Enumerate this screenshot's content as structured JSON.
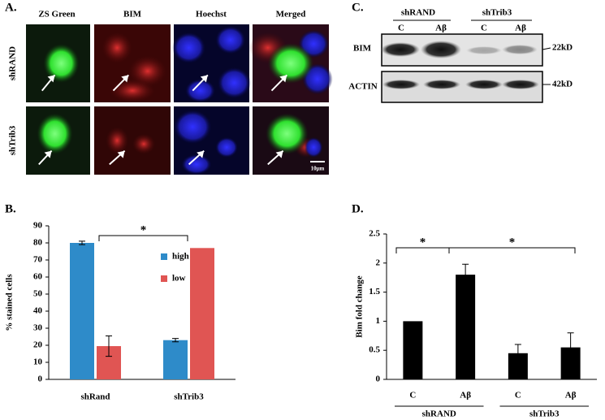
{
  "panel_a": {
    "label": "A.",
    "columns": [
      "ZS Green",
      "BIM",
      "Hoechst",
      "Merged"
    ],
    "rows": [
      "shRAND",
      "shTrib3"
    ],
    "scale_bar": "10μm"
  },
  "panel_c": {
    "label": "C.",
    "groups": [
      "shRAND",
      "shTrib3"
    ],
    "lanes": [
      "C",
      "Aβ",
      "C",
      "Aβ"
    ],
    "rows": [
      "BIM",
      "ACTIN"
    ],
    "sizes": [
      "22kD",
      "42kD"
    ]
  },
  "chart_data": [
    {
      "type": "bar",
      "label": "B.",
      "y_label": "%  stained cells",
      "categories": [
        "shRand",
        "shTrib3"
      ],
      "series": [
        {
          "name": "high",
          "color": "#2e8bc9",
          "values": [
            80,
            23
          ],
          "errors": [
            1,
            1
          ]
        },
        {
          "name": "low",
          "color": "#e05553",
          "values": [
            19.5,
            77
          ],
          "errors": [
            6,
            0
          ]
        }
      ],
      "ylim": [
        0,
        90
      ],
      "yticks": [
        0,
        10,
        20,
        30,
        40,
        50,
        60,
        70,
        80,
        90
      ],
      "annotations": [
        "*"
      ]
    },
    {
      "type": "bar",
      "label": "D.",
      "y_label": "Bim fold change",
      "categories": [
        "C",
        "Aβ",
        "C",
        "Aβ"
      ],
      "groups": [
        "shRAND",
        "shTrib3"
      ],
      "series": [
        {
          "color": "#000000",
          "values": [
            1,
            1.8,
            0.45,
            0.55
          ],
          "errors": [
            0,
            0.18,
            0.15,
            0.25
          ]
        }
      ],
      "ylim": [
        0,
        2.5
      ],
      "yticks": [
        0,
        0.5,
        1,
        1.5,
        2,
        2.5
      ],
      "annotations": [
        "*",
        "*"
      ]
    }
  ]
}
